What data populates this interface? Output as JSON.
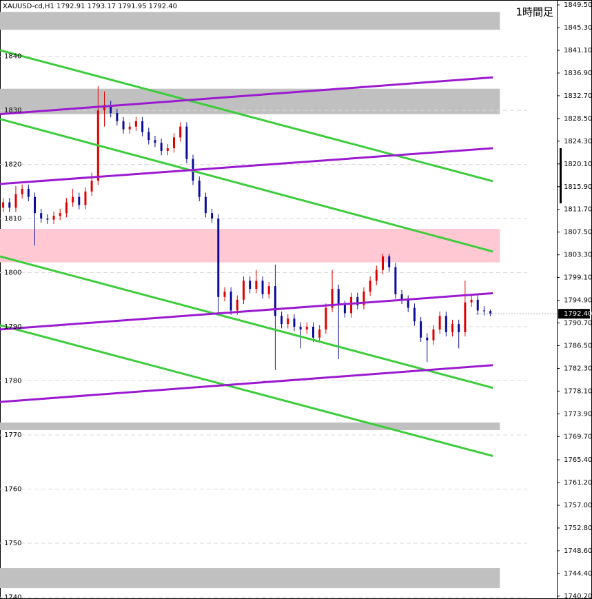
{
  "chart_data": {
    "type": "candlestick",
    "title": "1時間足",
    "header": "XAUUSD-cd,H1  1792.91 1793.17 1791.95 1792.40",
    "ylim": [
      1739.8,
      1850.4
    ],
    "xlim": [
      -0.5,
      87.5
    ],
    "yticks": [
      {
        "value": 1849.5,
        "label": "1849.50"
      },
      {
        "value": 1845.3,
        "label": "1845.30"
      },
      {
        "value": 1841.1,
        "label": "1841.10"
      },
      {
        "value": 1836.9,
        "label": "1836.90"
      },
      {
        "value": 1832.7,
        "label": "1832.70"
      },
      {
        "value": 1828.5,
        "label": "1828.50"
      },
      {
        "value": 1824.3,
        "label": "1824.30"
      },
      {
        "value": 1820.1,
        "label": "1820.10"
      },
      {
        "value": 1815.9,
        "label": "1815.90"
      },
      {
        "value": 1811.7,
        "label": "1811.70"
      },
      {
        "value": 1807.5,
        "label": "1807.50"
      },
      {
        "value": 1803.3,
        "label": "1803.30"
      },
      {
        "value": 1799.1,
        "label": "1799.10"
      },
      {
        "value": 1794.9,
        "label": "1794.90"
      },
      {
        "value": 1790.7,
        "label": "1790.70"
      },
      {
        "value": 1786.5,
        "label": "1786.50"
      },
      {
        "value": 1782.3,
        "label": "1782.30"
      },
      {
        "value": 1778.1,
        "label": "1778.10"
      },
      {
        "value": 1773.9,
        "label": "1773.90"
      },
      {
        "value": 1769.7,
        "label": "1769.70"
      },
      {
        "value": 1765.4,
        "label": "1765.40"
      },
      {
        "value": 1761.2,
        "label": "1761.20"
      },
      {
        "value": 1757,
        "label": "1757.00"
      },
      {
        "value": 1752.8,
        "label": "1752.80"
      },
      {
        "value": 1748.6,
        "label": "1748.60"
      },
      {
        "value": 1744.4,
        "label": "1744.40"
      },
      {
        "value": 1740.2,
        "label": "1740.20"
      }
    ],
    "level_ticks": [
      1840,
      1830,
      1820,
      1810,
      1800,
      1790,
      1780,
      1770,
      1760,
      1750,
      1740
    ],
    "current_price": {
      "value": 1792.4,
      "label": "1792.40"
    },
    "up_color": "#e00000",
    "down_color": "#0c0c9c",
    "zones": [
      {
        "low": 1844.9,
        "high": 1848.2,
        "color": "#c0c0c0"
      },
      {
        "low": 1829.3,
        "high": 1834.0,
        "color": "#c0c0c0"
      },
      {
        "low": 1801.9,
        "high": 1808.1,
        "color": "#ffc8d2"
      },
      {
        "low": 1770.9,
        "high": 1772.3,
        "color": "#c0c0c0"
      },
      {
        "low": 1741.7,
        "high": 1745.4,
        "color": "#c0c0c0"
      }
    ],
    "lines": [
      {
        "x": [
          -0.5,
          77.4
        ],
        "y": [
          1841.1,
          1816.9
        ],
        "color": "#3ccc3c"
      },
      {
        "x": [
          -0.5,
          77.4
        ],
        "y": [
          1828.4,
          1803.9
        ],
        "color": "#3ccc3c"
      },
      {
        "x": [
          -0.5,
          77.4
        ],
        "y": [
          1803.0,
          1778.7
        ],
        "color": "#3ccc3c"
      },
      {
        "x": [
          -0.5,
          77.4
        ],
        "y": [
          1790.3,
          1766.1
        ],
        "color": "#3ccc3c"
      },
      {
        "x": [
          -0.5,
          77.4
        ],
        "y": [
          1829.3,
          1836.1
        ],
        "color": "#9a1ad0"
      },
      {
        "x": [
          -0.5,
          77.4
        ],
        "y": [
          1816.4,
          1823.0
        ],
        "color": "#9a1ad0"
      },
      {
        "x": [
          -0.5,
          77.4
        ],
        "y": [
          1789.5,
          1796.2
        ],
        "color": "#9a1ad0"
      },
      {
        "x": [
          -0.5,
          77.4
        ],
        "y": [
          1776.1,
          1782.9
        ],
        "color": "#9a1ad0"
      }
    ],
    "open": [
      1812.0,
      1813.0,
      1812.0,
      1814.5,
      1815.5,
      1814.0,
      1811.0,
      1810.0,
      1809.8,
      1810.5,
      1811.0,
      1813.0,
      1814.0,
      1812.5,
      1815.0,
      1817.0,
      1830.0,
      1831.0,
      1829.5,
      1828.0,
      1826.5,
      1827.0,
      1828.0,
      1826.0,
      1824.5,
      1824.0,
      1822.5,
      1823.0,
      1825.0,
      1827.0,
      1821.0,
      1817.0,
      1814.0,
      1811.0,
      1810.0,
      1795.5,
      1796.5,
      1793.0,
      1795.0,
      1798.5,
      1797.0,
      1798.5,
      1796.0,
      1797.5,
      1792.0,
      1790.5,
      1791.5,
      1790.0,
      1789.5,
      1790.0,
      1788.0,
      1789.5,
      1793.5,
      1797.0,
      1794.0,
      1792.5,
      1795.5,
      1794.0,
      1796.5,
      1798.5,
      1800.5,
      1803.0,
      1801.0,
      1796.0,
      1795.0,
      1793.5,
      1791.0,
      1788.0,
      1787.5,
      1789.5,
      1792.0,
      1789.0,
      1790.5,
      1789.0,
      1794.5,
      1795.0,
      1793.0,
      1792.91
    ],
    "high": [
      1813.8,
      1813.8,
      1816.0,
      1816.3,
      1816.3,
      1814.8,
      1811.8,
      1810.8,
      1811.3,
      1811.8,
      1813.8,
      1815.5,
      1814.8,
      1815.8,
      1818.5,
      1834.5,
      1833.5,
      1831.8,
      1830.3,
      1828.8,
      1827.8,
      1828.8,
      1828.8,
      1826.8,
      1825.3,
      1824.8,
      1823.8,
      1825.8,
      1827.8,
      1827.8,
      1821.8,
      1817.8,
      1814.8,
      1811.8,
      1810.8,
      1797.3,
      1797.3,
      1795.8,
      1799.3,
      1799.3,
      1800.5,
      1799.3,
      1798.3,
      1801.5,
      1792.8,
      1792.3,
      1792.3,
      1790.8,
      1790.8,
      1790.8,
      1790.3,
      1794.3,
      1800.5,
      1797.8,
      1794.8,
      1796.3,
      1796.3,
      1797.3,
      1799.3,
      1801.3,
      1803.5,
      1803.5,
      1801.8,
      1796.8,
      1795.8,
      1794.3,
      1791.8,
      1788.8,
      1790.3,
      1792.8,
      1792.8,
      1791.3,
      1791.3,
      1798.5,
      1795.8,
      1795.8,
      1793.8,
      1793.17
    ],
    "low": [
      1811.2,
      1811.2,
      1811.2,
      1813.7,
      1813.2,
      1805.0,
      1809.2,
      1809.0,
      1809.0,
      1809.7,
      1810.2,
      1812.2,
      1811.7,
      1811.7,
      1814.2,
      1816.2,
      1827.0,
      1828.7,
      1827.2,
      1825.7,
      1825.7,
      1826.2,
      1825.2,
      1823.7,
      1823.2,
      1821.7,
      1821.7,
      1822.2,
      1824.2,
      1820.2,
      1816.2,
      1813.2,
      1810.2,
      1809.2,
      1792.0,
      1794.7,
      1792.2,
      1792.2,
      1794.2,
      1796.2,
      1796.2,
      1795.2,
      1795.2,
      1782.0,
      1789.7,
      1789.7,
      1789.2,
      1786.0,
      1788.7,
      1787.2,
      1787.2,
      1788.7,
      1792.7,
      1784.0,
      1791.7,
      1791.7,
      1793.2,
      1793.2,
      1795.7,
      1797.7,
      1799.7,
      1800.2,
      1795.2,
      1794.2,
      1792.7,
      1790.2,
      1787.2,
      1783.5,
      1786.7,
      1788.7,
      1788.2,
      1788.2,
      1786.0,
      1788.2,
      1793.7,
      1792.2,
      1792.1,
      1791.95
    ],
    "close": [
      1813.0,
      1812.0,
      1814.5,
      1815.5,
      1814.0,
      1811.0,
      1810.0,
      1809.8,
      1810.5,
      1811.0,
      1813.0,
      1814.0,
      1812.5,
      1815.0,
      1817.0,
      1830.0,
      1831.0,
      1829.5,
      1828.0,
      1826.5,
      1827.0,
      1828.0,
      1826.0,
      1824.5,
      1824.0,
      1822.5,
      1823.0,
      1825.0,
      1827.0,
      1821.0,
      1817.0,
      1814.0,
      1811.0,
      1810.0,
      1795.5,
      1796.5,
      1793.0,
      1795.0,
      1798.5,
      1797.0,
      1798.5,
      1796.0,
      1797.5,
      1792.0,
      1790.5,
      1791.5,
      1790.0,
      1789.5,
      1790.0,
      1788.0,
      1789.5,
      1793.5,
      1797.0,
      1794.0,
      1792.5,
      1795.5,
      1794.0,
      1796.5,
      1798.5,
      1800.5,
      1803.0,
      1801.0,
      1796.0,
      1795.0,
      1793.5,
      1791.0,
      1788.0,
      1787.5,
      1789.5,
      1792.0,
      1789.0,
      1790.5,
      1789.0,
      1794.5,
      1795.0,
      1793.0,
      1792.91,
      1792.4
    ]
  }
}
